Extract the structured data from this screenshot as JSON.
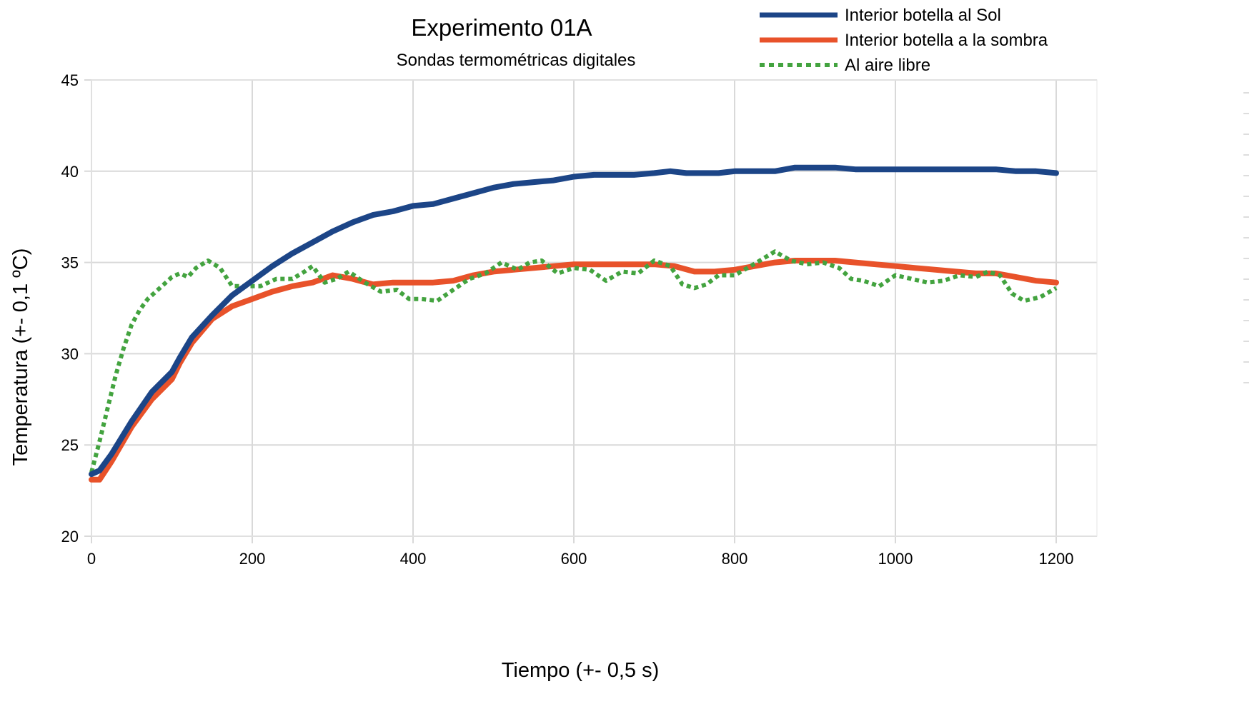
{
  "chart_data": {
    "type": "line",
    "title": "Experimento 01A",
    "subtitle": "Sondas termométricas digitales",
    "xlabel": "Tiempo (+- 0,5 s)",
    "ylabel": "Temperatura (+- 0,1 ºC)",
    "xlim": [
      0,
      1250
    ],
    "ylim": [
      20,
      45
    ],
    "xticks": [
      0,
      200,
      400,
      600,
      800,
      1000,
      1200
    ],
    "yticks": [
      20,
      25,
      30,
      35,
      40,
      45
    ],
    "xtick_labels": [
      "0",
      "200",
      "400",
      "600",
      "800",
      "1000",
      "1200"
    ],
    "ytick_labels": [
      "20",
      "25",
      "30",
      "35",
      "40",
      "45"
    ],
    "grid": true,
    "legend_position": "top-right",
    "series": [
      {
        "name": "Interior botella al Sol",
        "color": "#1c4587",
        "style": "solid",
        "x": [
          0,
          10,
          25,
          50,
          75,
          100,
          110,
          125,
          150,
          175,
          200,
          225,
          250,
          275,
          300,
          325,
          350,
          375,
          400,
          425,
          450,
          475,
          500,
          525,
          550,
          575,
          600,
          625,
          650,
          675,
          700,
          720,
          740,
          760,
          780,
          800,
          850,
          875,
          900,
          925,
          950,
          975,
          1000,
          1025,
          1050,
          1075,
          1100,
          1125,
          1150,
          1175,
          1200
        ],
        "y": [
          23.4,
          23.6,
          24.5,
          26.3,
          27.9,
          29.0,
          29.8,
          30.9,
          32.1,
          33.2,
          34.0,
          34.8,
          35.5,
          36.1,
          36.7,
          37.2,
          37.6,
          37.8,
          38.1,
          38.2,
          38.5,
          38.8,
          39.1,
          39.3,
          39.4,
          39.5,
          39.7,
          39.8,
          39.8,
          39.8,
          39.9,
          40.0,
          39.9,
          39.9,
          39.9,
          40.0,
          40.0,
          40.2,
          40.2,
          40.2,
          40.1,
          40.1,
          40.1,
          40.1,
          40.1,
          40.1,
          40.1,
          40.1,
          40.0,
          40.0,
          39.9
        ]
      },
      {
        "name": "Interior botella a la sombra",
        "color": "#e8522a",
        "style": "solid",
        "x": [
          0,
          10,
          25,
          50,
          75,
          100,
          110,
          125,
          150,
          175,
          200,
          225,
          250,
          275,
          300,
          325,
          350,
          375,
          400,
          425,
          450,
          475,
          500,
          525,
          550,
          575,
          600,
          625,
          650,
          675,
          700,
          725,
          750,
          775,
          800,
          825,
          850,
          875,
          900,
          925,
          950,
          975,
          1000,
          1025,
          1050,
          1075,
          1100,
          1125,
          1150,
          1175,
          1200
        ],
        "y": [
          23.1,
          23.1,
          24.1,
          26.0,
          27.5,
          28.6,
          29.5,
          30.6,
          31.9,
          32.6,
          33.0,
          33.4,
          33.7,
          33.9,
          34.3,
          34.1,
          33.8,
          33.9,
          33.9,
          33.9,
          34.0,
          34.3,
          34.5,
          34.6,
          34.7,
          34.8,
          34.9,
          34.9,
          34.9,
          34.9,
          34.9,
          34.8,
          34.5,
          34.5,
          34.6,
          34.8,
          35.0,
          35.1,
          35.1,
          35.1,
          35.0,
          34.9,
          34.8,
          34.7,
          34.6,
          34.5,
          34.4,
          34.4,
          34.2,
          34.0,
          33.9
        ]
      },
      {
        "name": "Al aire libre",
        "color": "#43a33f",
        "style": "dotted",
        "x": [
          0,
          10,
          20,
          30,
          40,
          50,
          60,
          70,
          80,
          90,
          100,
          110,
          120,
          130,
          145,
          160,
          175,
          190,
          210,
          230,
          250,
          265,
          275,
          290,
          305,
          320,
          340,
          360,
          380,
          395,
          410,
          430,
          450,
          470,
          490,
          510,
          530,
          545,
          560,
          580,
          600,
          620,
          640,
          660,
          680,
          700,
          720,
          735,
          750,
          765,
          780,
          800,
          820,
          835,
          850,
          870,
          890,
          910,
          930,
          945,
          960,
          980,
          1000,
          1020,
          1040,
          1060,
          1080,
          1100,
          1115,
          1130,
          1145,
          1160,
          1180,
          1200
        ],
        "y": [
          23.5,
          25.2,
          27.0,
          28.8,
          30.3,
          31.6,
          32.4,
          33.0,
          33.4,
          33.8,
          34.2,
          34.4,
          34.2,
          34.7,
          35.1,
          34.7,
          33.7,
          33.7,
          33.7,
          34.1,
          34.1,
          34.5,
          34.8,
          33.9,
          34.1,
          34.5,
          33.9,
          33.4,
          33.5,
          33.0,
          33.0,
          32.9,
          33.5,
          34.1,
          34.4,
          35.0,
          34.6,
          35.0,
          35.1,
          34.4,
          34.7,
          34.6,
          34.0,
          34.5,
          34.4,
          35.1,
          34.8,
          33.8,
          33.6,
          33.8,
          34.3,
          34.3,
          34.8,
          35.2,
          35.6,
          35.1,
          34.9,
          35.0,
          34.7,
          34.1,
          34.0,
          33.7,
          34.3,
          34.1,
          33.9,
          34.0,
          34.3,
          34.2,
          34.5,
          34.3,
          33.3,
          32.9,
          33.1,
          33.6
        ]
      }
    ]
  }
}
